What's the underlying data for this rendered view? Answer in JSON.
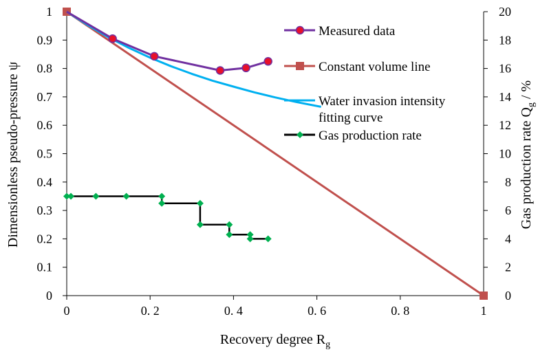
{
  "chart_data": {
    "type": "line",
    "xlabel": "Recovery degree R",
    "xlabel_sub": "g",
    "ylabel": "Dimensionless pseudo-pressure ψ",
    "ylabel_right": "Gas production rate Q",
    "ylabel_right_sub": "g",
    "ylabel_right_suffix": " / %",
    "xlim": [
      0,
      1
    ],
    "ylim": [
      0,
      1
    ],
    "ylim_right": [
      0,
      20
    ],
    "x_ticks": [
      0,
      0.2,
      0.4,
      0.6,
      0.8,
      1
    ],
    "x_tick_labels": [
      "0",
      "0. 2",
      "0. 4",
      "0. 6",
      "0. 8",
      "1"
    ],
    "y_ticks": [
      0,
      0.1,
      0.2,
      0.3,
      0.4,
      0.5,
      0.6,
      0.7,
      0.8,
      0.9,
      1
    ],
    "y_tick_labels": [
      "0",
      "0.1",
      "0.2",
      "0.3",
      "0.4",
      "0.5",
      "0.6",
      "0.7",
      "0.8",
      "0.9",
      "1"
    ],
    "y_right_ticks": [
      0,
      2,
      4,
      6,
      8,
      10,
      12,
      14,
      16,
      18,
      20
    ],
    "y_right_tick_labels": [
      "0",
      "2",
      "4",
      "6",
      "8",
      "10",
      "12",
      "14",
      "16",
      "18",
      "20"
    ],
    "grid": false,
    "legend_position": "top-right",
    "series": [
      {
        "name": "Measured data",
        "axis": "left",
        "color": "#7030A0",
        "marker": "circle",
        "marker_color": "#E8102A",
        "x": [
          0,
          0.11,
          0.21,
          0.368,
          0.43,
          0.483
        ],
        "y": [
          1,
          0.905,
          0.843,
          0.793,
          0.802,
          0.825
        ],
        "markers_at": [
          1,
          2,
          3,
          4,
          5
        ]
      },
      {
        "name": "Constant volume line",
        "axis": "left",
        "color": "#C0504D",
        "marker": "square",
        "x": [
          0,
          1
        ],
        "y": [
          1,
          0
        ],
        "markers_at": [
          0,
          1
        ]
      },
      {
        "name": "Water invasion intensity fitting curve",
        "name_lines": [
          "Water invasion intensity",
          "fitting curve"
        ],
        "axis": "left",
        "color": "#00B0F0",
        "marker": "none",
        "x": [
          0,
          0.05,
          0.1,
          0.15,
          0.2,
          0.25,
          0.3,
          0.35,
          0.4,
          0.45,
          0.5,
          0.55,
          0.61
        ],
        "y": [
          1,
          0.953,
          0.91,
          0.872,
          0.838,
          0.808,
          0.781,
          0.757,
          0.736,
          0.716,
          0.698,
          0.682,
          0.665
        ]
      },
      {
        "name": "Gas production rate",
        "axis": "right",
        "color": "#000000",
        "marker": "diamond",
        "marker_color": "#00B050",
        "x": [
          0,
          0.01,
          0.07,
          0.143,
          0.228,
          0.228,
          0.32,
          0.32,
          0.39,
          0.39,
          0.44,
          0.44,
          0.483
        ],
        "y": [
          7,
          7,
          7,
          7,
          7,
          6.5,
          6.5,
          5,
          5,
          4.3,
          4.3,
          4,
          4
        ]
      }
    ]
  }
}
